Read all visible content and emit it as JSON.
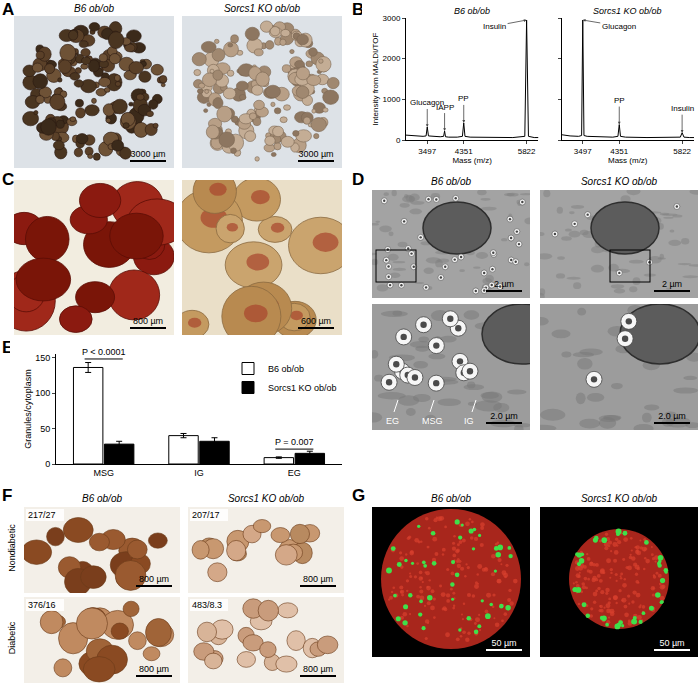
{
  "panels": {
    "A": {
      "label": "A",
      "images": [
        {
          "title": "B6 ob/ob",
          "scale_bar": "3000 µm"
        },
        {
          "title": "Sorcs1 KO ob/ob",
          "scale_bar": "3000 µm"
        }
      ]
    },
    "B": {
      "label": "B"
    },
    "C": {
      "label": "C",
      "images": [
        {
          "scale_bar": "800 µm"
        },
        {
          "scale_bar": "600 µm"
        }
      ]
    },
    "D": {
      "label": "D",
      "columns": [
        {
          "title": "B6 ob/ob",
          "scale_bar": "2 µm",
          "inset_scale_bar": "2.0 µm",
          "inset_labels": [
            "EG",
            "MSG",
            "IG"
          ]
        },
        {
          "title": "Sorcs1 KO ob/ob",
          "scale_bar": "2 µm",
          "inset_scale_bar": "2.0 µm"
        }
      ]
    },
    "E": {
      "label": "E"
    },
    "F": {
      "label": "F",
      "columns": [
        "B6 ob/ob",
        "Sorcs1 KO ob/ob"
      ],
      "rows": [
        {
          "title": "Nondiabetic",
          "cells": [
            {
              "counts": "217/27",
              "scale_bar": "800 µm"
            },
            {
              "counts": "207/17",
              "scale_bar": "800 µm"
            }
          ]
        },
        {
          "title": "Diabetic",
          "cells": [
            {
              "counts": "376/16",
              "scale_bar": "800 µm"
            },
            {
              "counts": "483/8.3",
              "scale_bar": "800 µm"
            }
          ]
        }
      ]
    },
    "G": {
      "label": "G",
      "images": [
        {
          "title": "B6 ob/ob",
          "scale_bar": "50 µm"
        },
        {
          "title": "Sorcs1 KO ob/ob",
          "scale_bar": "50 µm"
        }
      ]
    }
  },
  "chart_data": [
    {
      "panel": "B",
      "type": "line",
      "title": "B6 ob/ob",
      "x": [
        3000,
        3200,
        3400,
        3470,
        3497,
        3525,
        3600,
        3800,
        3880,
        3903,
        3925,
        4000,
        4200,
        4320,
        4351,
        4380,
        4500,
        5000,
        5500,
        5780,
        5822,
        5865,
        6000,
        6100
      ],
      "values": [
        120,
        100,
        90,
        100,
        320,
        100,
        90,
        80,
        90,
        220,
        80,
        70,
        70,
        90,
        420,
        90,
        70,
        60,
        60,
        90,
        2950,
        90,
        60,
        60
      ],
      "color": "#000000",
      "xlim": [
        3000,
        6100
      ],
      "xticks": [
        3497,
        4351,
        5822
      ],
      "ylim": [
        0,
        3000
      ],
      "yticks": [
        0,
        1000,
        2000,
        3000
      ],
      "x_label": "Mass (m/z)",
      "y_label": "Intensity from MALDI/TOF",
      "annotations": [
        {
          "text": "Glucagon",
          "x": 3497,
          "y": 320
        },
        {
          "text": "IAPP",
          "x": 3903,
          "y": 220
        },
        {
          "text": "PP",
          "x": 4351,
          "y": 420
        },
        {
          "text": "Insulin",
          "x": 5822,
          "y": 2950
        }
      ]
    },
    {
      "panel": "B",
      "type": "line",
      "title": "Sorcs1 KO ob/ob",
      "x": [
        3000,
        3200,
        3400,
        3470,
        3497,
        3525,
        3600,
        3800,
        3880,
        3903,
        3925,
        4000,
        4200,
        4320,
        4351,
        4380,
        4500,
        5000,
        5500,
        5780,
        5822,
        5865,
        6000,
        6100
      ],
      "values": [
        130,
        100,
        90,
        110,
        2950,
        110,
        90,
        80,
        80,
        80,
        80,
        70,
        70,
        90,
        380,
        90,
        70,
        60,
        60,
        70,
        180,
        70,
        60,
        60
      ],
      "color": "#000000",
      "xlim": [
        3000,
        6100
      ],
      "xticks": [
        3497,
        4351,
        5822
      ],
      "ylim": [
        0,
        3000
      ],
      "yticks": [
        0,
        1000,
        2000,
        3000
      ],
      "tick_labels": "x",
      "x_label": "Mass (m/z)",
      "annotations": [
        {
          "text": "Glucagon",
          "x": 3497,
          "y": 2950
        },
        {
          "text": "PP",
          "x": 4351,
          "y": 380
        },
        {
          "text": "Insulin",
          "x": 5822,
          "y": 180
        }
      ]
    },
    {
      "panel": "E",
      "type": "bar",
      "categories": [
        "MSG",
        "IG",
        "EG"
      ],
      "series": [
        {
          "name": "B6 ob/ob",
          "color": "#ffffff",
          "values": [
            136,
            40,
            9
          ],
          "errors": [
            7,
            3,
            1
          ]
        },
        {
          "name": "Sorcs1 KO ob/ob",
          "color": "#000000",
          "values": [
            28,
            32,
            15
          ],
          "errors": [
            4,
            5,
            3
          ]
        }
      ],
      "ylim": [
        0,
        155
      ],
      "yticks": [
        0,
        50,
        100,
        150
      ],
      "y_label": "Granules/cytoplasm",
      "legend": "top right",
      "annotations": [
        {
          "text": "P < 0.0001",
          "category": "MSG",
          "y": 148
        },
        {
          "text": "P = 0.007",
          "category": "EG",
          "y": 21
        }
      ]
    }
  ]
}
